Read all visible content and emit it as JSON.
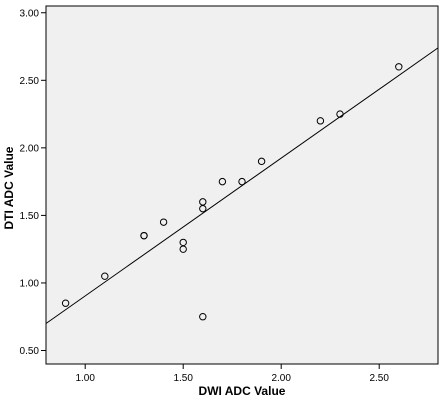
{
  "chart_data": {
    "type": "scatter",
    "title": "",
    "xlabel": "DWI ADC Value",
    "ylabel": "DTI ADC Value",
    "xlim": [
      0.8,
      2.8
    ],
    "ylim": [
      0.4,
      3.05
    ],
    "x_ticks": [
      1.0,
      1.5,
      2.0,
      2.5
    ],
    "x_tick_labels": [
      "1.00",
      "1.50",
      "2.00",
      "2.50"
    ],
    "y_ticks": [
      0.5,
      1.0,
      1.5,
      2.0,
      2.5,
      3.0
    ],
    "y_tick_labels": [
      "0.50",
      "1.00",
      "1.50",
      "2.00",
      "2.50",
      "3.00"
    ],
    "grid": false,
    "background": "#f0f0f0",
    "marker": "open-circle",
    "series": [
      {
        "points": [
          {
            "x": 0.9,
            "y": 0.85
          },
          {
            "x": 1.1,
            "y": 1.05
          },
          {
            "x": 1.3,
            "y": 1.35
          },
          {
            "x": 1.3,
            "y": 1.35
          },
          {
            "x": 1.4,
            "y": 1.45
          },
          {
            "x": 1.5,
            "y": 1.3
          },
          {
            "x": 1.5,
            "y": 1.25
          },
          {
            "x": 1.6,
            "y": 1.6
          },
          {
            "x": 1.6,
            "y": 1.55
          },
          {
            "x": 1.6,
            "y": 0.75
          },
          {
            "x": 1.7,
            "y": 1.75
          },
          {
            "x": 1.8,
            "y": 1.75
          },
          {
            "x": 1.9,
            "y": 1.9
          },
          {
            "x": 2.2,
            "y": 2.2
          },
          {
            "x": 2.3,
            "y": 2.25
          },
          {
            "x": 2.6,
            "y": 2.6
          }
        ]
      }
    ],
    "fit_line": {
      "x": [
        0.8,
        2.8
      ],
      "y": [
        0.7,
        2.74
      ]
    }
  }
}
